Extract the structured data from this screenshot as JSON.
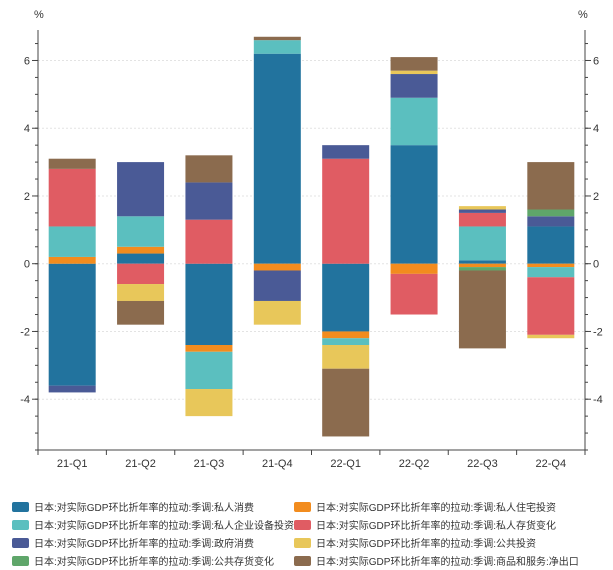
{
  "chart_data": {
    "type": "bar",
    "stacked": true,
    "y_unit_left": "%",
    "y_unit_right": "%",
    "categories": [
      "21-Q1",
      "21-Q2",
      "21-Q3",
      "21-Q4",
      "22-Q1",
      "22-Q2",
      "22-Q3",
      "22-Q4"
    ],
    "y_ticks": [
      -4,
      -2,
      0,
      2,
      4,
      6
    ],
    "ylim": [
      -5.5,
      6.9
    ],
    "grid": true,
    "legend_position": "bottom",
    "series": [
      {
        "name": "日本:对实际GDP环比折年率的拉动:季调:私人消费",
        "color": "#22739e",
        "values": [
          -3.6,
          0.3,
          -2.4,
          6.2,
          -2.0,
          3.5,
          0.1,
          1.1
        ]
      },
      {
        "name": "日本:对实际GDP环比折年率的拉动:季调:私人住宅投资",
        "color": "#f28c1e",
        "values": [
          0.2,
          0.2,
          -0.2,
          -0.2,
          -0.2,
          -0.3,
          -0.1,
          -0.1
        ]
      },
      {
        "name": "日本:对实际GDP环比折年率的拉动:季调:私人企业设备投资",
        "color": "#5bbfbf",
        "values": [
          0.9,
          0.9,
          -1.1,
          0.4,
          -0.2,
          1.4,
          1.0,
          -0.3
        ]
      },
      {
        "name": "日本:对实际GDP环比折年率的拉动:季调:私人存货变化",
        "color": "#e05c63",
        "values": [
          1.7,
          -0.6,
          1.3,
          0.0,
          3.1,
          -1.2,
          0.4,
          -1.7
        ]
      },
      {
        "name": "日本:对实际GDP环比折年率的拉动:季调:政府消费",
        "color": "#4a5a96",
        "values": [
          -0.2,
          1.6,
          1.1,
          -0.9,
          0.4,
          0.7,
          0.1,
          0.3
        ]
      },
      {
        "name": "日本:对实际GDP环比折年率的拉动:季调:公共投资",
        "color": "#e8c75a",
        "values": [
          0.0,
          -0.5,
          -0.8,
          -0.7,
          -0.7,
          0.1,
          0.1,
          -0.1
        ]
      },
      {
        "name": "日本:对实际GDP环比折年率的拉动:季调:公共存货变化",
        "color": "#5fa66a",
        "values": [
          0.0,
          0.0,
          0.0,
          0.0,
          0.0,
          0.0,
          -0.1,
          0.2
        ]
      },
      {
        "name": "日本:对实际GDP环比折年率的拉动:季调:商品和服务:净出口",
        "color": "#8b6b4e",
        "values": [
          0.3,
          -0.7,
          0.8,
          0.1,
          -2.0,
          0.4,
          -2.3,
          1.4
        ]
      }
    ]
  }
}
